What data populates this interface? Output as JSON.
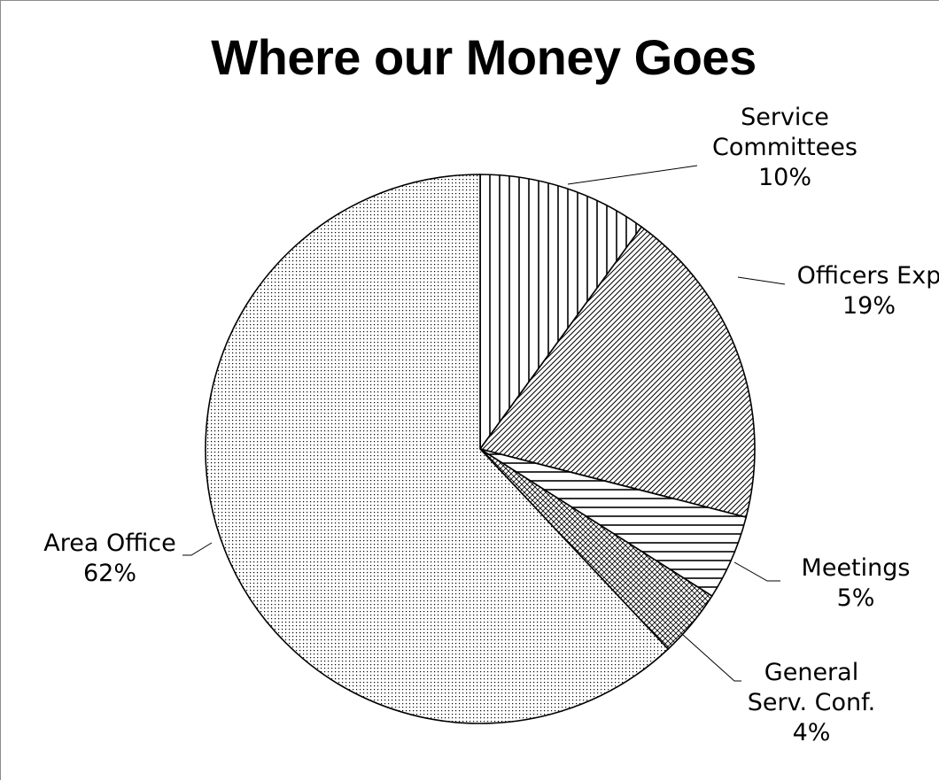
{
  "chart_data": {
    "type": "pie",
    "title": "Where our Money Goes",
    "slices": [
      {
        "name": "Service Committees",
        "label_lines": [
          "Service",
          "Committees"
        ],
        "percent_label": "10%",
        "value": 10,
        "pattern": "vertical-lines"
      },
      {
        "name": "Officers Exp",
        "label_lines": [
          "Officers Exp"
        ],
        "percent_label": "19%",
        "value": 19,
        "pattern": "diagonal-lines"
      },
      {
        "name": "Meetings",
        "label_lines": [
          "Meetings"
        ],
        "percent_label": "5%",
        "value": 5,
        "pattern": "horizontal-lines"
      },
      {
        "name": "General Serv. Conf.",
        "label_lines": [
          "General",
          "Serv. Conf."
        ],
        "percent_label": "4%",
        "value": 4,
        "pattern": "crosshatch"
      },
      {
        "name": "Area Office",
        "label_lines": [
          "Area Office"
        ],
        "percent_label": "62%",
        "value": 62,
        "pattern": "dots"
      }
    ],
    "start_angle_deg": 0,
    "direction": "clockwise",
    "legend": "none",
    "data_labels": "outside-with-leader-lines"
  }
}
